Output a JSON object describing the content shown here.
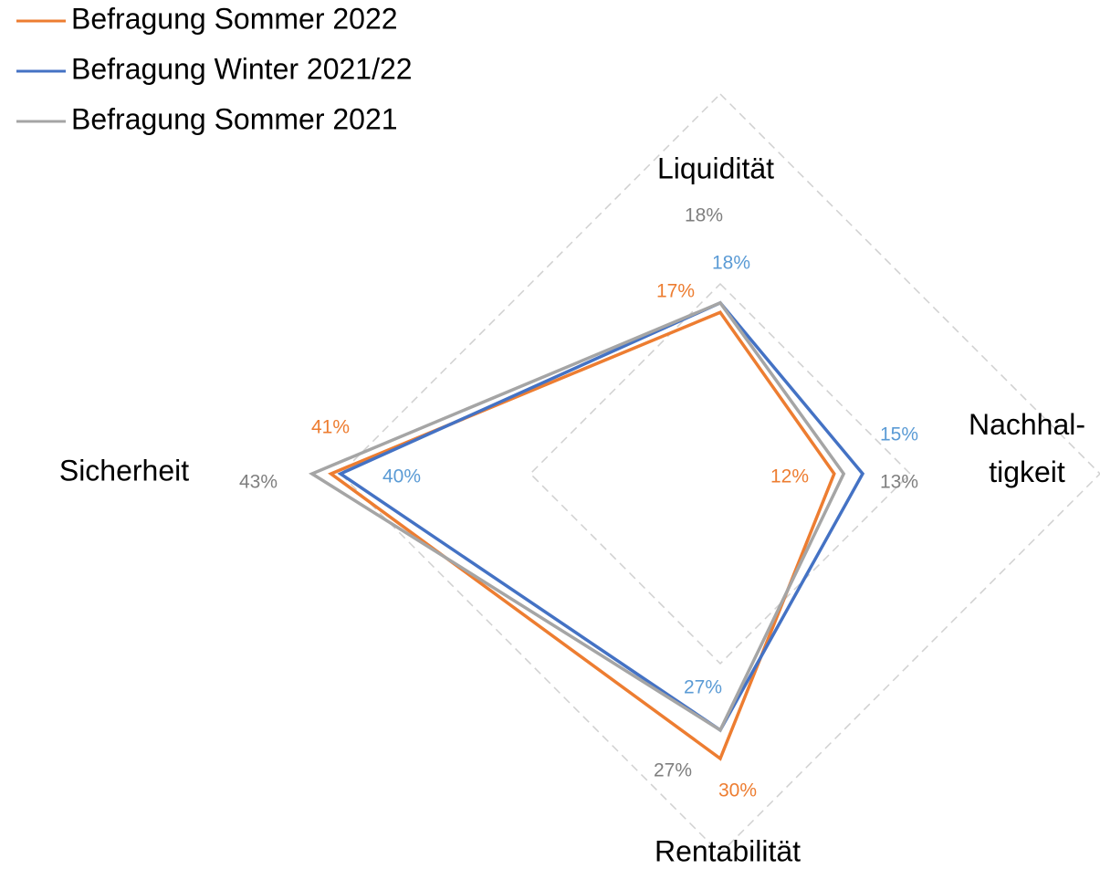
{
  "chart_data": {
    "type": "radar",
    "categories": [
      "Liquidität",
      "Nachhal-\ntigkeit",
      "Rentabilität",
      "Sicherheit"
    ],
    "series": [
      {
        "name": "Befragung Sommer 2022",
        "color": "#ed7d31",
        "label_color": "#ed7d31",
        "values": [
          17,
          12,
          30,
          41
        ],
        "value_labels": [
          "17%",
          "12%",
          "30%",
          "41%"
        ]
      },
      {
        "name": "Befragung Winter 2021/22",
        "color": "#4472c4",
        "label_color": "#5b9bd5",
        "values": [
          18,
          15,
          27,
          40
        ],
        "value_labels": [
          "18%",
          "15%",
          "27%",
          "40%"
        ]
      },
      {
        "name": "Befragung Sommer 2021",
        "color": "#a5a5a5",
        "label_color": "#7f7f7f",
        "values": [
          18,
          13,
          27,
          43
        ],
        "value_labels": [
          "18%",
          "13%",
          "27%",
          "43%"
        ]
      }
    ],
    "ylim": [
      0,
      50
    ],
    "yticks": [
      0,
      20,
      40
    ],
    "grid": true,
    "legend": "top-left"
  }
}
